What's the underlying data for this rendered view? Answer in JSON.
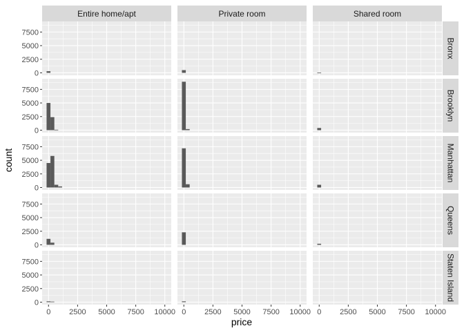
{
  "chart_data": {
    "type": "bar",
    "subtype": "faceted-histogram",
    "xlabel": "price",
    "ylabel": "count",
    "col_facets": [
      "Entire home/apt",
      "Private room",
      "Shared room"
    ],
    "row_facets": [
      "Bronx",
      "Brooklyn",
      "Manhattan",
      "Queens",
      "Staten Island"
    ],
    "xlim": [
      -550,
      10550
    ],
    "ylim": [
      -450,
      9450
    ],
    "x_ticks": [
      0,
      2500,
      5000,
      7500,
      10000
    ],
    "x_tick_labels": [
      "0",
      "2500",
      "5000",
      "7500",
      "10000"
    ],
    "y_ticks": [
      0,
      2500,
      5000,
      7500
    ],
    "y_tick_labels": [
      "0",
      "2500",
      "5000",
      "7500"
    ],
    "bin_width": 333,
    "grid": true,
    "bar_color": "#595959",
    "panel_bg": "#ebebeb",
    "strip_bg": "#d9d9d9",
    "facets": {
      "Bronx": {
        "Entire home/apt": [
          {
            "x": 0,
            "count": 300
          }
        ],
        "Private room": [
          {
            "x": 0,
            "count": 500
          }
        ],
        "Shared room": [
          {
            "x": 0,
            "count": 40
          }
        ]
      },
      "Brooklyn": {
        "Entire home/apt": [
          {
            "x": 0,
            "count": 5000
          },
          {
            "x": 333,
            "count": 2400
          },
          {
            "x": 667,
            "count": 80
          }
        ],
        "Private room": [
          {
            "x": 0,
            "count": 8900
          },
          {
            "x": 333,
            "count": 200
          }
        ],
        "Shared room": [
          {
            "x": 0,
            "count": 400
          }
        ]
      },
      "Manhattan": {
        "Entire home/apt": [
          {
            "x": 0,
            "count": 4500
          },
          {
            "x": 333,
            "count": 5800
          },
          {
            "x": 667,
            "count": 500
          },
          {
            "x": 1000,
            "count": 200
          }
        ],
        "Private room": [
          {
            "x": 0,
            "count": 7200
          },
          {
            "x": 333,
            "count": 600
          }
        ],
        "Shared room": [
          {
            "x": 0,
            "count": 500
          }
        ]
      },
      "Queens": {
        "Entire home/apt": [
          {
            "x": 0,
            "count": 1100
          },
          {
            "x": 333,
            "count": 400
          }
        ],
        "Private room": [
          {
            "x": 0,
            "count": 2300
          }
        ],
        "Shared room": [
          {
            "x": 0,
            "count": 200
          }
        ]
      },
      "Staten Island": {
        "Entire home/apt": [
          {
            "x": 0,
            "count": 150
          },
          {
            "x": 333,
            "count": 100
          }
        ],
        "Private room": [
          {
            "x": 0,
            "count": 150
          }
        ],
        "Shared room": []
      }
    }
  }
}
